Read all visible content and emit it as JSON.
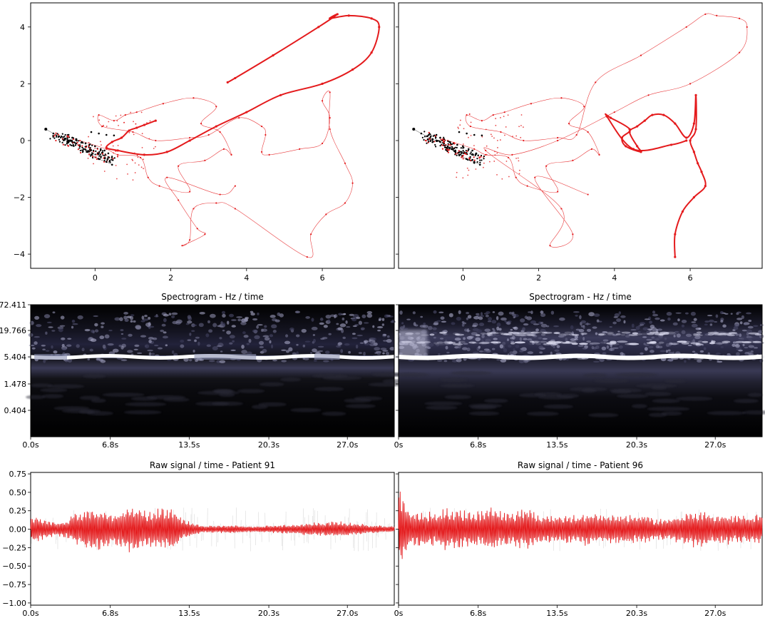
{
  "colors": {
    "accent": "#e41a1c",
    "black": "#000000",
    "frame": "#000000"
  },
  "chart_data": [
    {
      "type": "scatter",
      "xlim": [
        -1.7,
        7.9
      ],
      "ylim": [
        -4.5,
        4.85
      ],
      "xticks": [
        0,
        2,
        4,
        6
      ],
      "yticks": [
        -4,
        -2,
        0,
        2,
        4
      ],
      "xticklabels": [
        "0",
        "2",
        "4",
        "6"
      ],
      "yticklabels": [
        "−4",
        "−2",
        "0",
        "2",
        "4"
      ],
      "background_series": [
        {
          "name": "",
          "color": "#e41a1c",
          "points": [
            [
              -0.4,
              0.0
            ],
            [
              0.3,
              -0.3
            ],
            [
              0.6,
              -0.5
            ],
            [
              1.2,
              -0.6
            ],
            [
              1.4,
              -1.3
            ],
            [
              1.7,
              -1.6
            ],
            [
              2.5,
              -1.8
            ],
            [
              2.2,
              -0.9
            ],
            [
              2.9,
              -0.7
            ],
            [
              3.4,
              -0.3
            ],
            [
              3.6,
              -0.5
            ],
            [
              3.3,
              0.3
            ],
            [
              2.8,
              0.6
            ],
            [
              3.2,
              1.2
            ],
            [
              2.6,
              1.5
            ],
            [
              1.8,
              1.3
            ],
            [
              1.1,
              1.0
            ],
            [
              0.8,
              0.9
            ],
            [
              0.5,
              0.7
            ],
            [
              0.1,
              0.9
            ],
            [
              0.2,
              0.5
            ],
            [
              1.0,
              0.3
            ],
            [
              1.6,
              0.0
            ],
            [
              2.5,
              0.1
            ],
            [
              3.0,
              0.2
            ],
            [
              3.8,
              0.8
            ],
            [
              4.4,
              0.5
            ],
            [
              4.5,
              0.2
            ],
            [
              4.4,
              -0.4
            ],
            [
              4.6,
              -0.5
            ],
            [
              5.4,
              -0.3
            ],
            [
              6.0,
              -0.1
            ],
            [
              6.2,
              0.8
            ],
            [
              6.0,
              1.4
            ],
            [
              6.2,
              1.7
            ],
            [
              6.2,
              0.4
            ],
            [
              6.6,
              -0.8
            ],
            [
              6.8,
              -1.5
            ],
            [
              6.6,
              -2.2
            ],
            [
              6.1,
              -2.6
            ],
            [
              5.7,
              -3.3
            ],
            [
              5.6,
              -4.1
            ],
            [
              3.7,
              -2.4
            ],
            [
              3.2,
              -2.2
            ],
            [
              2.6,
              -2.4
            ],
            [
              2.5,
              -3.5
            ],
            [
              2.3,
              -3.7
            ],
            [
              2.9,
              -3.3
            ],
            [
              2.7,
              -3.1
            ],
            [
              2.2,
              -2.1
            ],
            [
              1.9,
              -1.3
            ],
            [
              3.3,
              -1.9
            ],
            [
              3.7,
              -1.6
            ]
          ]
        },
        {
          "name": "",
          "color": "#000000",
          "points": [
            [
              -1.3,
              0.4
            ],
            [
              -1.1,
              0.25
            ],
            [
              -0.95,
              0.15
            ],
            [
              -0.8,
              0.05
            ],
            [
              -0.7,
              0.0
            ],
            [
              -0.6,
              -0.05
            ],
            [
              -0.5,
              -0.1
            ],
            [
              -0.4,
              -0.2
            ],
            [
              -0.3,
              -0.3
            ],
            [
              -0.2,
              -0.4
            ],
            [
              -0.1,
              -0.5
            ],
            [
              0.1,
              -0.65
            ],
            [
              0.3,
              -0.75
            ],
            [
              0.45,
              -0.85
            ],
            [
              -0.1,
              0.3
            ],
            [
              0.1,
              0.25
            ],
            [
              0.3,
              0.2
            ],
            [
              0.5,
              0.18
            ],
            [
              -0.7,
              0.2
            ],
            [
              -0.6,
              0.1
            ],
            [
              -0.5,
              0.05
            ],
            [
              -0.35,
              -0.05
            ],
            [
              -0.25,
              -0.1
            ],
            [
              -0.15,
              -0.15
            ],
            [
              0.0,
              -0.2
            ],
            [
              0.15,
              -0.3
            ],
            [
              0.25,
              -0.35
            ],
            [
              0.35,
              -0.45
            ]
          ]
        }
      ],
      "highlight": {
        "name": "",
        "color": "#e41a1c",
        "points": [
          [
            3.5,
            2.05
          ],
          [
            3.7,
            2.2
          ],
          [
            4.7,
            3.0
          ],
          [
            5.9,
            4.0
          ],
          [
            6.4,
            4.45
          ],
          [
            6.2,
            4.3
          ],
          [
            6.7,
            4.4
          ],
          [
            7.3,
            4.3
          ],
          [
            7.5,
            4.0
          ],
          [
            7.3,
            3.1
          ],
          [
            6.8,
            2.5
          ],
          [
            6.0,
            2.0
          ],
          [
            4.9,
            1.6
          ],
          [
            4.0,
            1.0
          ],
          [
            3.2,
            0.5
          ],
          [
            2.5,
            0.0
          ],
          [
            1.9,
            -0.4
          ],
          [
            1.3,
            -0.5
          ],
          [
            0.6,
            -0.35
          ],
          [
            0.3,
            -0.25
          ],
          [
            0.45,
            -0.05
          ],
          [
            0.7,
            0.1
          ],
          [
            0.9,
            0.35
          ],
          [
            1.1,
            0.45
          ],
          [
            1.3,
            0.55
          ],
          [
            1.6,
            0.7
          ]
        ]
      }
    },
    {
      "type": "scatter",
      "xlim": [
        -1.7,
        7.9
      ],
      "ylim": [
        -4.5,
        4.85
      ],
      "xticks": [
        0,
        2,
        4,
        6
      ],
      "yticks": [
        -4,
        -2,
        0,
        2,
        4
      ],
      "xticklabels": [
        "0",
        "2",
        "4",
        "6"
      ],
      "yticklabels": [
        "",
        "",
        "",
        "",
        ""
      ],
      "background_series": [
        {
          "name": "",
          "color": "#e41a1c",
          "points": [
            [
              -0.4,
              0.0
            ],
            [
              0.3,
              -0.3
            ],
            [
              0.6,
              -0.5
            ],
            [
              1.2,
              -0.6
            ],
            [
              1.4,
              -1.3
            ],
            [
              1.7,
              -1.6
            ],
            [
              2.5,
              -1.8
            ],
            [
              2.2,
              -0.9
            ],
            [
              2.9,
              -0.7
            ],
            [
              3.4,
              -0.3
            ],
            [
              3.6,
              -0.5
            ],
            [
              3.3,
              0.3
            ],
            [
              2.8,
              0.6
            ],
            [
              3.2,
              1.2
            ],
            [
              2.6,
              1.5
            ],
            [
              1.8,
              1.3
            ],
            [
              1.1,
              1.0
            ],
            [
              0.8,
              0.9
            ],
            [
              0.5,
              0.7
            ],
            [
              0.1,
              0.9
            ],
            [
              0.2,
              0.5
            ],
            [
              1.0,
              0.3
            ],
            [
              1.6,
              0.0
            ],
            [
              2.5,
              0.1
            ],
            [
              3.0,
              0.2
            ],
            [
              3.5,
              2.05
            ],
            [
              4.7,
              3.0
            ],
            [
              5.9,
              4.0
            ],
            [
              6.4,
              4.45
            ],
            [
              6.7,
              4.4
            ],
            [
              7.3,
              4.3
            ],
            [
              7.5,
              4.0
            ],
            [
              7.3,
              3.1
            ],
            [
              6.0,
              2.0
            ],
            [
              4.9,
              1.6
            ],
            [
              4.0,
              1.0
            ],
            [
              2.5,
              0.0
            ],
            [
              1.3,
              -0.5
            ],
            [
              0.6,
              -0.35
            ],
            [
              2.6,
              -2.4
            ],
            [
              2.3,
              -3.7
            ],
            [
              2.9,
              -3.3
            ],
            [
              1.9,
              -1.3
            ],
            [
              3.3,
              -1.9
            ]
          ]
        },
        {
          "name": "",
          "color": "#000000",
          "points": [
            [
              -1.3,
              0.4
            ],
            [
              -1.1,
              0.25
            ],
            [
              -0.95,
              0.15
            ],
            [
              -0.8,
              0.05
            ],
            [
              -0.7,
              0.0
            ],
            [
              -0.6,
              -0.05
            ],
            [
              -0.5,
              -0.1
            ],
            [
              -0.4,
              -0.2
            ],
            [
              -0.3,
              -0.3
            ],
            [
              -0.2,
              -0.4
            ],
            [
              -0.1,
              -0.5
            ],
            [
              0.1,
              -0.65
            ],
            [
              0.3,
              -0.75
            ],
            [
              0.45,
              -0.85
            ],
            [
              -0.1,
              0.3
            ],
            [
              0.1,
              0.25
            ],
            [
              0.3,
              0.2
            ],
            [
              0.5,
              0.18
            ],
            [
              -0.7,
              0.2
            ],
            [
              -0.6,
              0.1
            ],
            [
              -0.5,
              0.05
            ],
            [
              -0.35,
              -0.05
            ],
            [
              -0.25,
              -0.1
            ],
            [
              -0.15,
              -0.15
            ],
            [
              0.0,
              -0.2
            ],
            [
              0.15,
              -0.3
            ],
            [
              0.25,
              -0.35
            ],
            [
              0.35,
              -0.45
            ]
          ]
        }
      ],
      "highlight": {
        "name": "",
        "color": "#e41a1c",
        "points": [
          [
            5.6,
            -4.1
          ],
          [
            5.6,
            -3.3
          ],
          [
            5.8,
            -2.5
          ],
          [
            6.1,
            -2.0
          ],
          [
            6.4,
            -1.6
          ],
          [
            6.3,
            -1.1
          ],
          [
            6.2,
            -0.8
          ],
          [
            6.1,
            -0.4
          ],
          [
            6.0,
            0.0
          ],
          [
            6.15,
            0.4
          ],
          [
            6.15,
            1.6
          ],
          [
            6.1,
            0.6
          ],
          [
            5.9,
            0.1
          ],
          [
            5.6,
            0.6
          ],
          [
            5.3,
            0.9
          ],
          [
            5.0,
            0.9
          ],
          [
            4.8,
            0.7
          ],
          [
            4.6,
            0.5
          ],
          [
            4.4,
            0.3
          ],
          [
            4.6,
            -0.2
          ],
          [
            4.7,
            -0.4
          ],
          [
            4.3,
            -0.2
          ],
          [
            4.2,
            0.1
          ],
          [
            4.4,
            0.4
          ],
          [
            3.9,
            0.8
          ],
          [
            3.8,
            0.85
          ],
          [
            4.5,
            -0.3
          ],
          [
            5.5,
            -0.15
          ],
          [
            5.9,
            0.0
          ]
        ]
      }
    },
    {
      "type": "heatmap",
      "title": "Spectrogram - Hz / time",
      "yticklabels": [
        "72.411",
        "19.766",
        "5.404",
        "1.478",
        "0.404"
      ],
      "xticklabels": [
        "0.0s",
        "6.8s",
        "13.5s",
        "20.3s",
        "27.0s"
      ],
      "band_hz": 5.404
    },
    {
      "type": "heatmap",
      "title": "Spectrogram - Hz / time",
      "yticklabels": [
        "",
        "",
        "",
        "",
        ""
      ],
      "xticklabels": [
        "0s",
        "6.8s",
        "13.5s",
        "20.3s",
        "27.0s"
      ],
      "band_hz": 5.404
    },
    {
      "type": "line",
      "title": "Raw signal / time - Patient 91",
      "ylim": [
        -1.03,
        0.77
      ],
      "yticks": [
        0.75,
        0.5,
        0.25,
        0.0,
        -0.25,
        -0.5,
        -0.75,
        -1.0
      ],
      "yticklabels": [
        "0.75",
        "0.50",
        "0.25",
        "0.00",
        "−0.25",
        "−0.50",
        "−0.75",
        "−1.00"
      ],
      "xticklabels": [
        "0.0s",
        "6.8s",
        "13.5s",
        "20.3s",
        "27.0s"
      ],
      "envelope": {
        "t": [
          0,
          1,
          2,
          3,
          4,
          5,
          6,
          7,
          8,
          9,
          10,
          11,
          12,
          13,
          14,
          15,
          16,
          17,
          18,
          19,
          20,
          21,
          22,
          23,
          24,
          25,
          26,
          27,
          28,
          29,
          30,
          31
        ],
        "amplitude": [
          0.2,
          0.15,
          0.1,
          0.12,
          0.25,
          0.3,
          0.3,
          0.2,
          0.3,
          0.35,
          0.25,
          0.3,
          0.3,
          0.15,
          0.08,
          0.05,
          0.05,
          0.06,
          0.05,
          0.04,
          0.05,
          0.06,
          0.06,
          0.08,
          0.1,
          0.1,
          0.12,
          0.1,
          0.08,
          0.06,
          0.05,
          0.05
        ]
      }
    },
    {
      "type": "line",
      "title": "Raw signal / time - Patient 96",
      "ylim": [
        -1.03,
        0.77
      ],
      "yticks": [
        0.75,
        0.5,
        0.25,
        0.0,
        -0.25,
        -0.5,
        -0.75,
        -1.0
      ],
      "yticklabels": [
        "",
        "",
        "",
        "",
        "",
        "",
        "",
        ""
      ],
      "xticklabels": [
        "0s",
        "6.8s",
        "13.5s",
        "20.3s",
        "27.0s"
      ],
      "envelope": {
        "t": [
          0,
          1,
          2,
          3,
          4,
          5,
          6,
          7,
          8,
          9,
          10,
          11,
          12,
          13,
          14,
          15,
          16,
          17,
          18,
          19,
          20,
          21,
          22,
          23,
          24,
          25,
          26,
          27,
          28,
          29,
          30,
          31
        ],
        "amplitude": [
          0.6,
          0.25,
          0.25,
          0.25,
          0.3,
          0.3,
          0.25,
          0.25,
          0.3,
          0.25,
          0.25,
          0.3,
          0.2,
          0.2,
          0.2,
          0.2,
          0.25,
          0.2,
          0.2,
          0.2,
          0.2,
          0.2,
          0.15,
          0.15,
          0.2,
          0.25,
          0.25,
          0.2,
          0.22,
          0.2,
          0.2,
          0.2
        ]
      }
    }
  ]
}
